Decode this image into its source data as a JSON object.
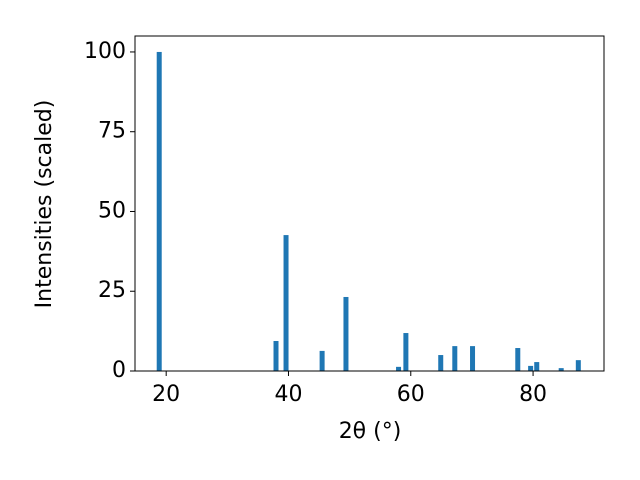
{
  "chart_data": {
    "type": "bar",
    "xlabel": "2θ (°)",
    "ylabel": "Intensities (scaled)",
    "x": [
      18.86,
      37.96,
      39.6,
      45.5,
      49.4,
      58.0,
      59.2,
      64.9,
      67.2,
      70.1,
      77.5,
      79.6,
      80.6,
      84.6,
      87.4
    ],
    "values": [
      100,
      9.4,
      42.6,
      6.3,
      23.2,
      1.3,
      11.9,
      5.0,
      7.8,
      7.8,
      7.2,
      1.6,
      2.8,
      0.9,
      3.4
    ],
    "color": "#1f77b4",
    "xlim": [
      14.9,
      91.6
    ],
    "xticks": [
      20,
      40,
      60,
      80
    ],
    "ylim": [
      0,
      105
    ],
    "yticks": [
      0,
      25,
      50,
      75,
      100
    ]
  }
}
